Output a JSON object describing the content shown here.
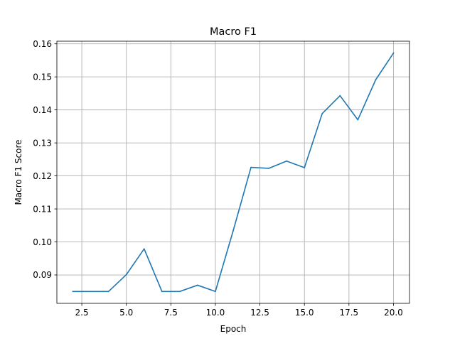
{
  "chart_data": {
    "type": "line",
    "title": "Macro F1",
    "xlabel": "Epoch",
    "ylabel": "Macro F1 Score",
    "xlim": [
      1.1,
      20.9
    ],
    "ylim": [
      0.0814,
      0.1608
    ],
    "grid": true,
    "legend": "none",
    "x_ticks": [
      2.5,
      5.0,
      7.5,
      10.0,
      12.5,
      15.0,
      17.5,
      20.0
    ],
    "x_tick_labels": [
      "2.5",
      "5.0",
      "7.5",
      "10.0",
      "12.5",
      "15.0",
      "17.5",
      "20.0"
    ],
    "y_ticks": [
      0.09,
      0.1,
      0.11,
      0.12,
      0.13,
      0.14,
      0.15,
      0.16
    ],
    "y_tick_labels": [
      "0.09",
      "0.10",
      "0.11",
      "0.12",
      "0.13",
      "0.14",
      "0.15",
      "0.16"
    ],
    "series": [
      {
        "color": "#1f77b4",
        "x": [
          2,
          3,
          4,
          5,
          6,
          7,
          8,
          9,
          10,
          11,
          12,
          13,
          14,
          15,
          16,
          17,
          18,
          19,
          20
        ],
        "values": [
          0.085,
          0.085,
          0.085,
          0.0901,
          0.0979,
          0.085,
          0.085,
          0.0869,
          0.085,
          0.1034,
          0.1226,
          0.1223,
          0.1245,
          0.1225,
          0.1389,
          0.1443,
          0.137,
          0.1491,
          0.1572
        ]
      }
    ]
  }
}
